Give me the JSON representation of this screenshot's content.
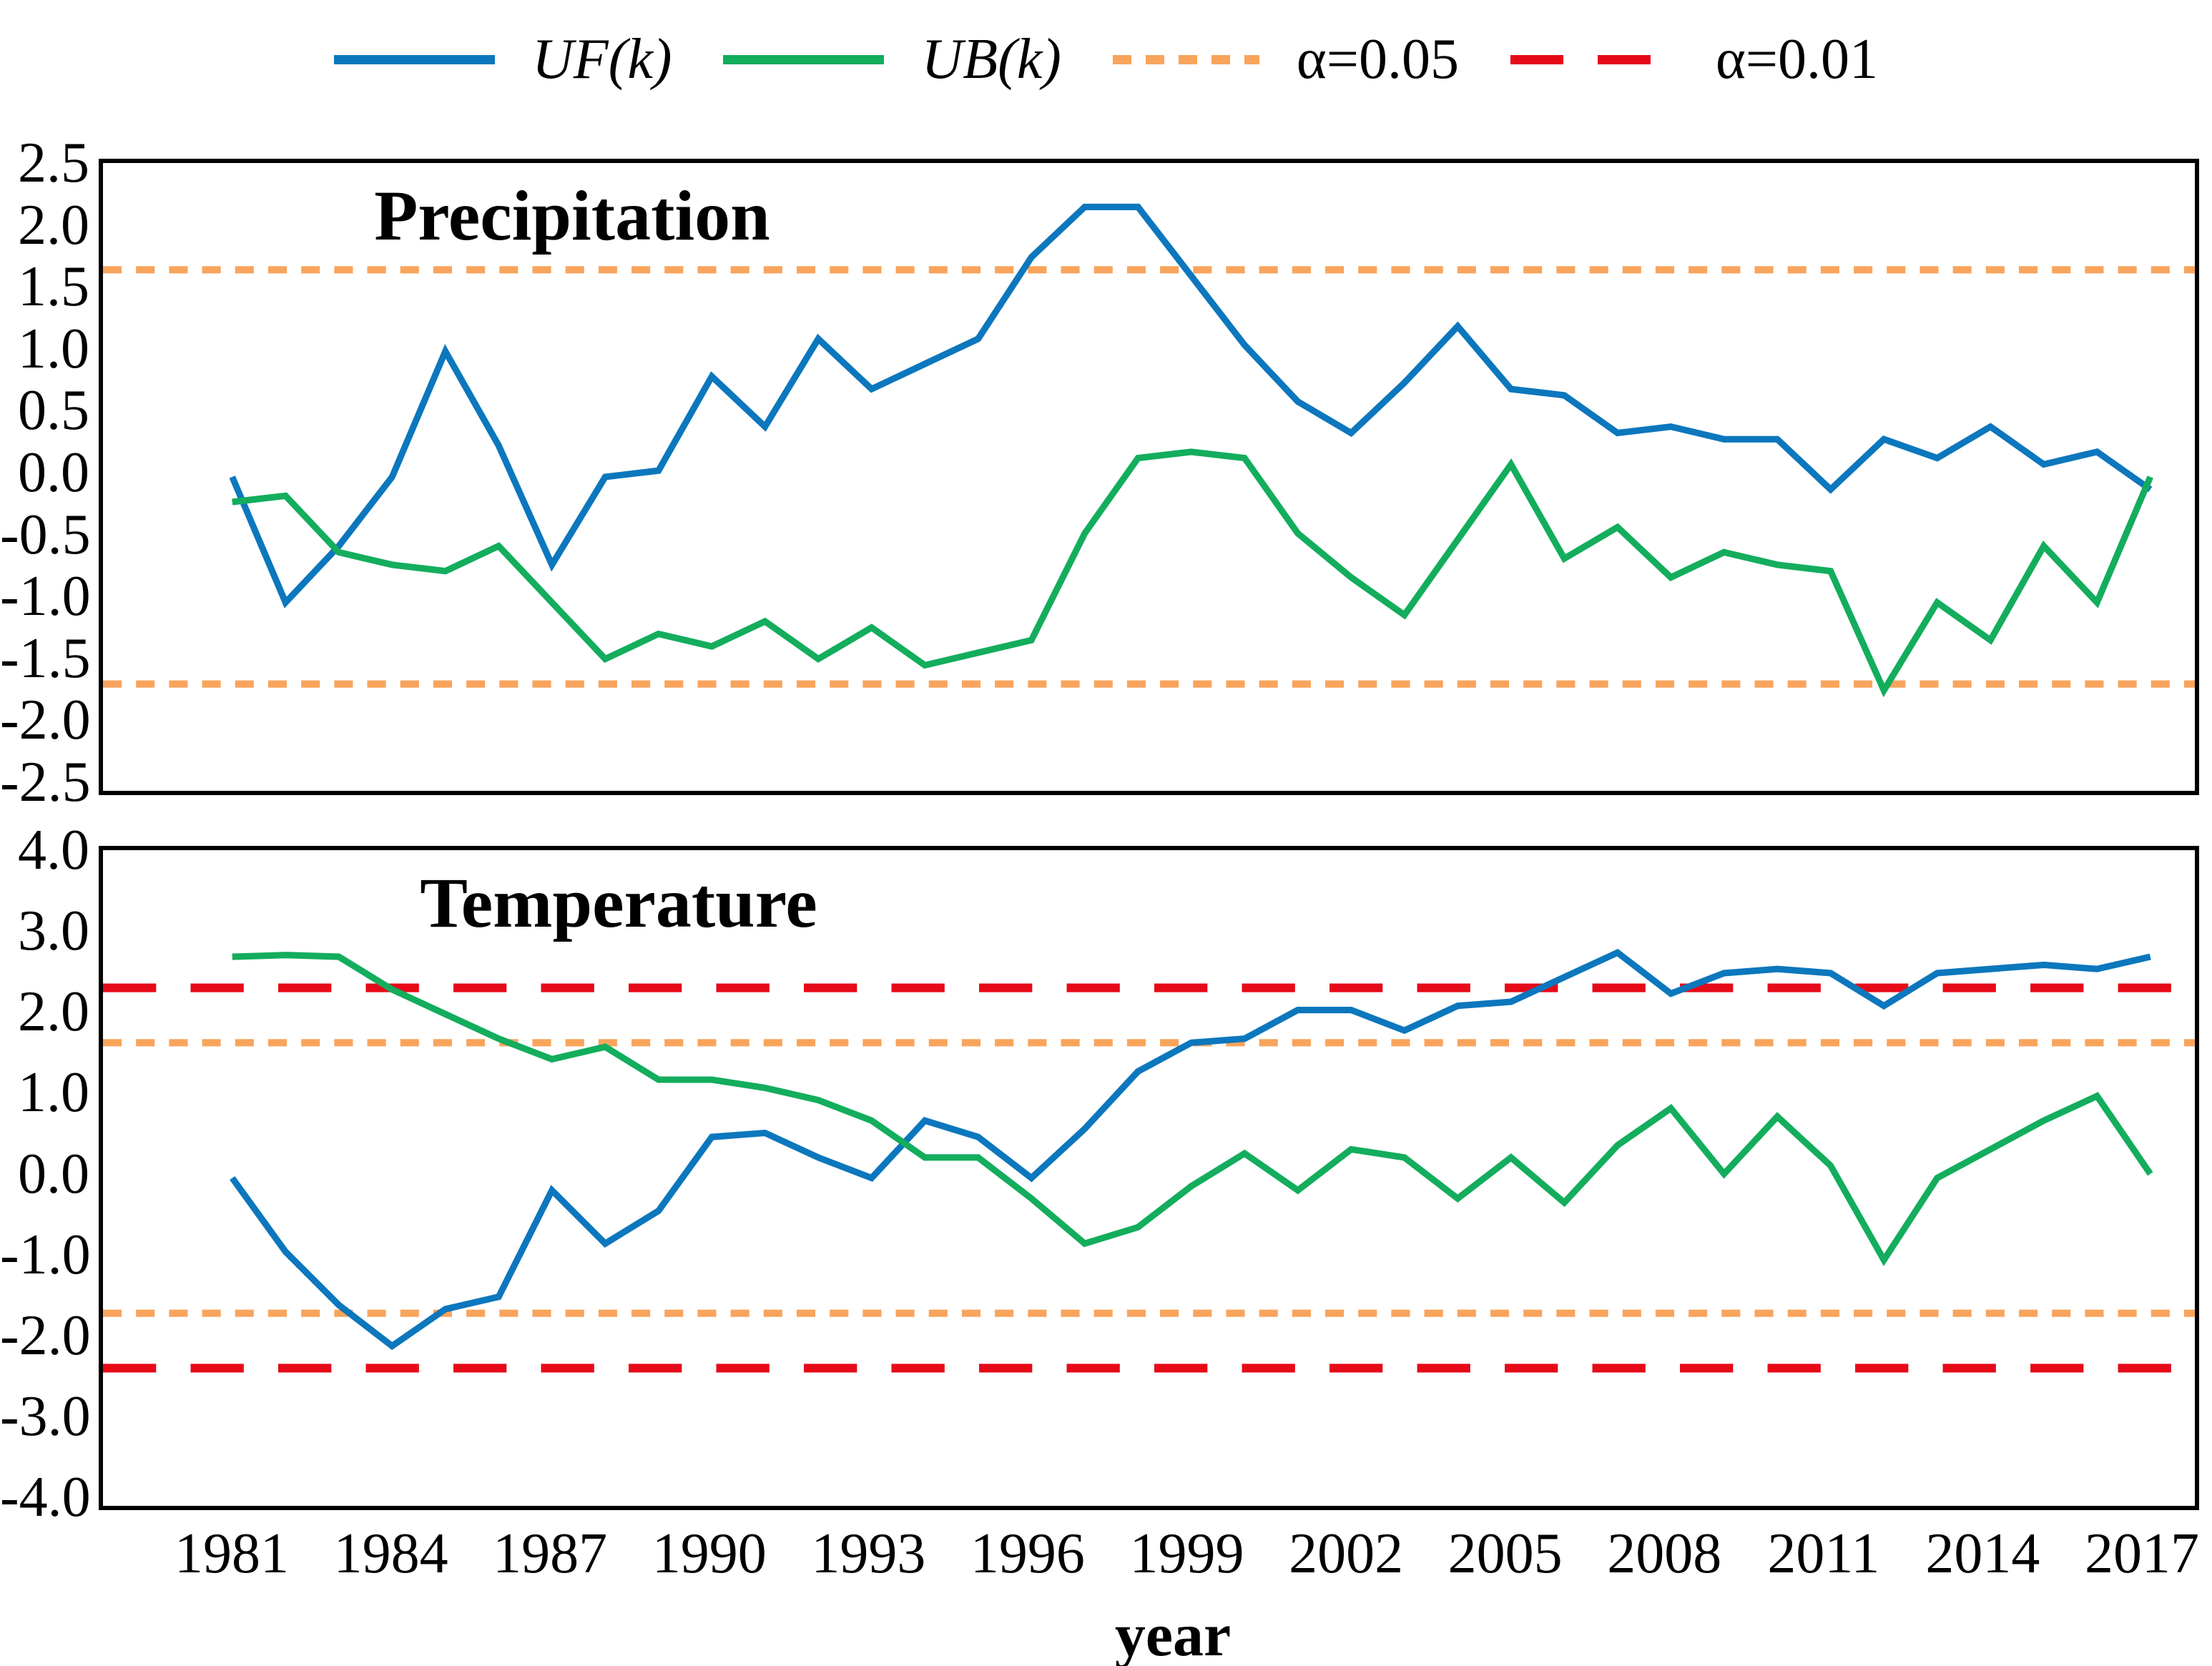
{
  "legend": {
    "items": [
      {
        "label": "UF(k)",
        "color": "#0c77bd",
        "pattern": "solid"
      },
      {
        "label": "UB(k)",
        "color": "#13ad5d",
        "pattern": "solid"
      },
      {
        "label": "α=0.05",
        "color": "#f9a45c",
        "pattern": "dash-small"
      },
      {
        "label": "α=0.01",
        "color": "#e60a18",
        "pattern": "dash-long"
      }
    ]
  },
  "chart_data": [
    {
      "type": "line",
      "title": "Precipitation",
      "x": [
        1981,
        1982,
        1983,
        1984,
        1985,
        1986,
        1987,
        1988,
        1989,
        1990,
        1991,
        1992,
        1993,
        1994,
        1995,
        1996,
        1997,
        1998,
        1999,
        2000,
        2001,
        2002,
        2003,
        2004,
        2005,
        2006,
        2007,
        2008,
        2009,
        2010,
        2011,
        2012,
        2013,
        2014,
        2015,
        2016,
        2017
      ],
      "xticks": [
        1981,
        1984,
        1987,
        1990,
        1993,
        1996,
        1999,
        2002,
        2005,
        2008,
        2011,
        2014,
        2017
      ],
      "xlabel": "year",
      "ylim": [
        -2.5,
        2.5
      ],
      "ytick_step": 0.5,
      "grid": false,
      "series": [
        {
          "name": "UF(k)",
          "color": "#0c77bd",
          "values": [
            0.0,
            -1.0,
            -0.55,
            0.0,
            1.0,
            0.25,
            -0.7,
            0.0,
            0.05,
            0.8,
            0.4,
            1.1,
            0.7,
            0.9,
            1.1,
            1.75,
            2.15,
            2.15,
            1.6,
            1.05,
            0.6,
            0.35,
            0.75,
            1.2,
            0.7,
            0.65,
            0.35,
            0.4,
            0.3,
            0.3,
            -0.1,
            0.3,
            0.15,
            0.4,
            0.1,
            0.2,
            -0.1
          ]
        },
        {
          "name": "UB(k)",
          "color": "#13ad5d",
          "values": [
            -0.2,
            -0.15,
            -0.6,
            -0.7,
            -0.75,
            -0.55,
            -1.0,
            -1.45,
            -1.25,
            -1.35,
            -1.15,
            -1.45,
            -1.2,
            -1.5,
            -1.4,
            -1.3,
            -0.45,
            0.15,
            0.2,
            0.15,
            -0.45,
            -0.8,
            -1.1,
            -0.5,
            0.1,
            -0.65,
            -0.4,
            -0.8,
            -0.6,
            -0.7,
            -0.75,
            -1.7,
            -1.0,
            -1.3,
            -0.55,
            -1.0,
            0.0
          ]
        }
      ],
      "thresholds": [
        {
          "label": "α=0.05",
          "color": "#f9a45c",
          "dash": "small",
          "values": [
            1.65,
            -1.65
          ]
        }
      ]
    },
    {
      "type": "line",
      "title": "Temperature",
      "x": [
        1981,
        1982,
        1983,
        1984,
        1985,
        1986,
        1987,
        1988,
        1989,
        1990,
        1991,
        1992,
        1993,
        1994,
        1995,
        1996,
        1997,
        1998,
        1999,
        2000,
        2001,
        2002,
        2003,
        2004,
        2005,
        2006,
        2007,
        2008,
        2009,
        2010,
        2011,
        2012,
        2013,
        2014,
        2015,
        2016,
        2017
      ],
      "xticks": [
        1981,
        1984,
        1987,
        1990,
        1993,
        1996,
        1999,
        2002,
        2005,
        2008,
        2011,
        2014,
        2017
      ],
      "xlabel": "year",
      "ylim": [
        -4.0,
        4.0
      ],
      "ytick_step": 1.0,
      "grid": false,
      "series": [
        {
          "name": "UF(k)",
          "color": "#0c77bd",
          "values": [
            0.0,
            -0.9,
            -1.55,
            -2.05,
            -1.6,
            -1.45,
            -0.15,
            -0.8,
            -0.4,
            0.5,
            0.55,
            0.25,
            0.0,
            0.7,
            0.5,
            0.0,
            0.6,
            1.3,
            1.65,
            1.7,
            2.05,
            2.05,
            1.8,
            2.1,
            2.15,
            2.45,
            2.75,
            2.25,
            2.5,
            2.55,
            2.5,
            2.1,
            2.5,
            2.55,
            2.6,
            2.55,
            2.7
          ]
        },
        {
          "name": "UB(k)",
          "color": "#13ad5d",
          "values": [
            2.7,
            2.72,
            2.7,
            2.3,
            2.0,
            1.7,
            1.45,
            1.6,
            1.2,
            1.2,
            1.1,
            0.95,
            0.7,
            0.25,
            0.25,
            -0.25,
            -0.8,
            -0.6,
            -0.1,
            0.3,
            -0.15,
            0.35,
            0.25,
            -0.25,
            0.25,
            -0.3,
            0.4,
            0.85,
            0.05,
            0.75,
            0.15,
            -1.0,
            0.0,
            0.35,
            0.7,
            1.0,
            0.05
          ]
        }
      ],
      "thresholds": [
        {
          "label": "α=0.05",
          "color": "#f9a45c",
          "dash": "small",
          "values": [
            1.65,
            -1.65
          ]
        },
        {
          "label": "α=0.01",
          "color": "#e60a18",
          "dash": "long",
          "values": [
            2.32,
            -2.32
          ]
        }
      ]
    }
  ]
}
